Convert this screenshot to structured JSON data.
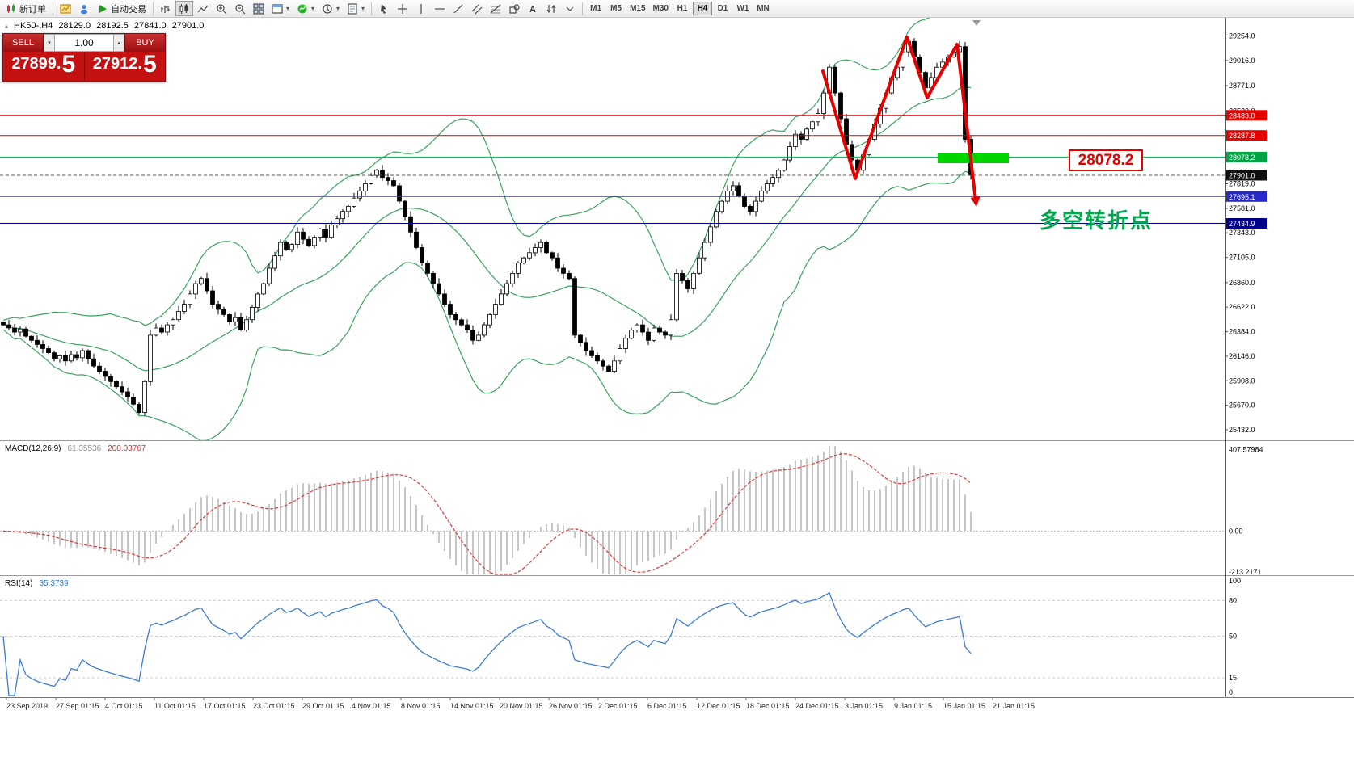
{
  "icons": {
    "caret_down": "▾",
    "caret_up": "▴",
    "collapse_triangle": "▴"
  },
  "toolbar": {
    "timeframes": [
      "M1",
      "M5",
      "M15",
      "M30",
      "H1",
      "H4",
      "D1",
      "W1",
      "MN"
    ],
    "active_timeframe": "H4",
    "groups": [
      {
        "items": [
          {
            "name": "new-order",
            "icon": "new-order",
            "label": "新订单"
          }
        ]
      },
      {
        "items": [
          {
            "name": "new-chart",
            "icon": "new-chart"
          },
          {
            "name": "profiles",
            "icon": "profiles"
          },
          {
            "name": "autotrading",
            "icon": "play",
            "label": "自动交易"
          }
        ]
      },
      {
        "items": [
          {
            "name": "bar-chart-mode",
            "icon": "bars"
          },
          {
            "name": "candlestick-mode",
            "icon": "candles",
            "active": true
          },
          {
            "name": "line-chart-mode",
            "icon": "linechart"
          },
          {
            "name": "zoom-in",
            "icon": "zoom-in"
          },
          {
            "name": "zoom-out",
            "icon": "zoom-out"
          },
          {
            "name": "tile-windows",
            "icon": "tile"
          },
          {
            "name": "chart-windows",
            "icon": "window",
            "caret": true
          },
          {
            "name": "indicators-list",
            "icon": "indicators",
            "caret": true
          },
          {
            "name": "periods",
            "icon": "periods",
            "caret": true
          },
          {
            "name": "templates",
            "icon": "templates",
            "caret": true
          }
        ]
      },
      {
        "items": [
          {
            "name": "cursor-tool",
            "icon": "cursor"
          },
          {
            "name": "crosshair-tool",
            "icon": "crosshair"
          },
          {
            "name": "vertical-line-tool",
            "icon": "vline"
          },
          {
            "name": "horizontal-line-tool",
            "icon": "hline"
          },
          {
            "name": "trendline-tool",
            "icon": "tline"
          },
          {
            "name": "channel-tool",
            "icon": "channel"
          },
          {
            "name": "fibonacci-tool",
            "icon": "fibo"
          },
          {
            "name": "shapes-tool",
            "icon": "shapes"
          },
          {
            "name": "text-tool",
            "icon": "text"
          },
          {
            "name": "arrows-tool",
            "icon": "arrows"
          },
          {
            "name": "more-tools",
            "icon": "caret"
          }
        ]
      },
      {
        "type": "timeframes"
      }
    ]
  },
  "chart_header": {
    "symbol_period": "HK50-,H4",
    "open": "28129.0",
    "high": "28192.5",
    "low": "27841.0",
    "close": "27901.0"
  },
  "trade_panel": {
    "sell_label": "SELL",
    "buy_label": "BUY",
    "volume": "1.00",
    "sell_price_main": "27899.",
    "sell_price_big": "5",
    "buy_price_main": "27912.",
    "buy_price_big": "5"
  },
  "chart_data": {
    "type": "candlestick",
    "symbol": "HK50-",
    "timeframe": "H4",
    "ohlc_display": {
      "open": 28129.0,
      "high": 28192.5,
      "low": 27841.0,
      "close": 27901.0
    },
    "ylim": [
      25330,
      29430
    ],
    "closes": [
      26450,
      26420,
      26380,
      26410,
      26340,
      26300,
      26260,
      26220,
      26180,
      26120,
      26150,
      26100,
      26160,
      26130,
      26200,
      26120,
      26050,
      26000,
      25950,
      25900,
      25850,
      25800,
      25750,
      25680,
      25600,
      25900,
      26350,
      26420,
      26380,
      26450,
      26500,
      26580,
      26650,
      26750,
      26850,
      26900,
      26780,
      26650,
      26600,
      26550,
      26480,
      26520,
      26400,
      26500,
      26620,
      26750,
      26850,
      27000,
      27120,
      27250,
      27180,
      27230,
      27350,
      27280,
      27220,
      27300,
      27380,
      27300,
      27420,
      27480,
      27550,
      27600,
      27680,
      27750,
      27820,
      27900,
      27950,
      27880,
      27850,
      27800,
      27650,
      27500,
      27350,
      27200,
      27050,
      26950,
      26850,
      26750,
      26650,
      26550,
      26500,
      26450,
      26400,
      26300,
      26350,
      26450,
      26550,
      26650,
      26750,
      26850,
      26950,
      27050,
      27100,
      27150,
      27200,
      27250,
      27150,
      27100,
      27000,
      26950,
      26900,
      26350,
      26280,
      26200,
      26150,
      26100,
      26050,
      26000,
      26100,
      26220,
      26320,
      26400,
      26450,
      26380,
      26300,
      26420,
      26380,
      26350,
      26500,
      26950,
      26880,
      26800,
      26950,
      27100,
      27250,
      27400,
      27550,
      27650,
      27750,
      27800,
      27700,
      27600,
      27550,
      27650,
      27750,
      27820,
      27880,
      27950,
      28050,
      28180,
      28300,
      28250,
      28350,
      28420,
      28500,
      28700,
      28950,
      28700,
      28450,
      28200,
      28050,
      27950,
      28100,
      28250,
      28400,
      28550,
      28700,
      28850,
      28950,
      29100,
      29200,
      29050,
      28900,
      28750,
      28850,
      28950,
      29000,
      29050,
      29100,
      29150,
      28250,
      27901
    ],
    "indicators": {
      "bollinger": {
        "period": 20,
        "color": "#3aa35e"
      },
      "macd": {
        "label": "MACD(12,26,9)",
        "value_main": "61.35536",
        "value_signal": "200.03767",
        "ylim": [
          -220,
          445
        ],
        "axis_ticks": [
          "407.57984",
          "0.00",
          "-213.2171"
        ]
      },
      "rsi": {
        "label": "RSI(14)",
        "value": "35.3739",
        "levels": [
          80,
          50,
          15
        ],
        "axis_ticks": [
          "100",
          "80",
          "50",
          "15",
          "0"
        ]
      }
    },
    "price_lines": [
      {
        "price": 28483.0,
        "label": "28483.0",
        "color": "#e60000",
        "badge": "#e60000"
      },
      {
        "price": 28287.8,
        "label": "28287.8",
        "color": "#e60000",
        "badge": "#e60000"
      },
      {
        "price": 28078.2,
        "label": "28078.2",
        "color": "#00b14f",
        "badge": "#00a344"
      },
      {
        "price": 27901.0,
        "label": "27901.0",
        "color": "#555555",
        "badge": "#101010",
        "dash": true
      },
      {
        "price": 27695.1,
        "label": "27695.1",
        "color": "#3a3ad4",
        "badge": "#2929c8"
      },
      {
        "price": 27434.9,
        "label": "27434.9",
        "color": "#00008b",
        "badge": "#00008b"
      }
    ],
    "price_axis_ticks": [
      "29254.0",
      "29016.0",
      "28771.0",
      "28523.0",
      "27819.0",
      "27581.0",
      "27343.0",
      "27105.0",
      "26860.0",
      "26622.0",
      "26384.0",
      "26146.0",
      "25908.0",
      "25670.0",
      "25432.0"
    ],
    "time_axis": [
      "23 Sep 2019",
      "27 Sep 01:15",
      "4 Oct 01:15",
      "11 Oct 01:15",
      "17 Oct 01:15",
      "23 Oct 01:15",
      "29 Oct 01:15",
      "4 Nov 01:15",
      "8 Nov 01:15",
      "14 Nov 01:15",
      "20 Nov 01:15",
      "26 Nov 01:15",
      "2 Dec 01:15",
      "6 Dec 01:15",
      "12 Dec 01:15",
      "18 Dec 01:15",
      "24 Dec 01:15",
      "3 Jan 01:15",
      "9 Jan 01:15",
      "15 Jan 01:15",
      "21 Jan 01:15"
    ],
    "annotations": {
      "zigzag_points": [
        [
          1018,
          88
        ],
        [
          1058,
          221
        ],
        [
          1122,
          46
        ],
        [
          1147,
          121
        ],
        [
          1184,
          55
        ],
        [
          1207,
          248
        ]
      ],
      "zigzag_color": "#e60000",
      "highlight_rect": {
        "x": 1160,
        "y": 189,
        "w": 88,
        "h": 13,
        "color": "#00d500"
      },
      "price_label": {
        "text": "28078.2"
      },
      "note_text": {
        "text": "多空转折点"
      }
    }
  }
}
